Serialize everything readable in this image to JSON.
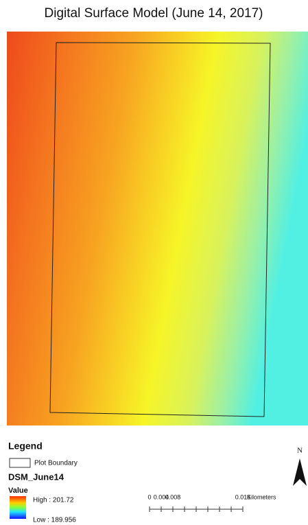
{
  "title": "Digital Surface Model (June 14, 2017)",
  "legend": {
    "heading": "Legend",
    "boundary_label": "Plot Boundary",
    "layer_name": "DSM_June14",
    "value_heading": "Value",
    "high_label": "High : 201.72",
    "low_label": "Low : 189.956"
  },
  "scale_bar": {
    "labels": [
      "0",
      "0.004",
      "0.008",
      "0.016"
    ],
    "unit": "Kilometers"
  },
  "north_arrow": {
    "label": "N"
  }
}
